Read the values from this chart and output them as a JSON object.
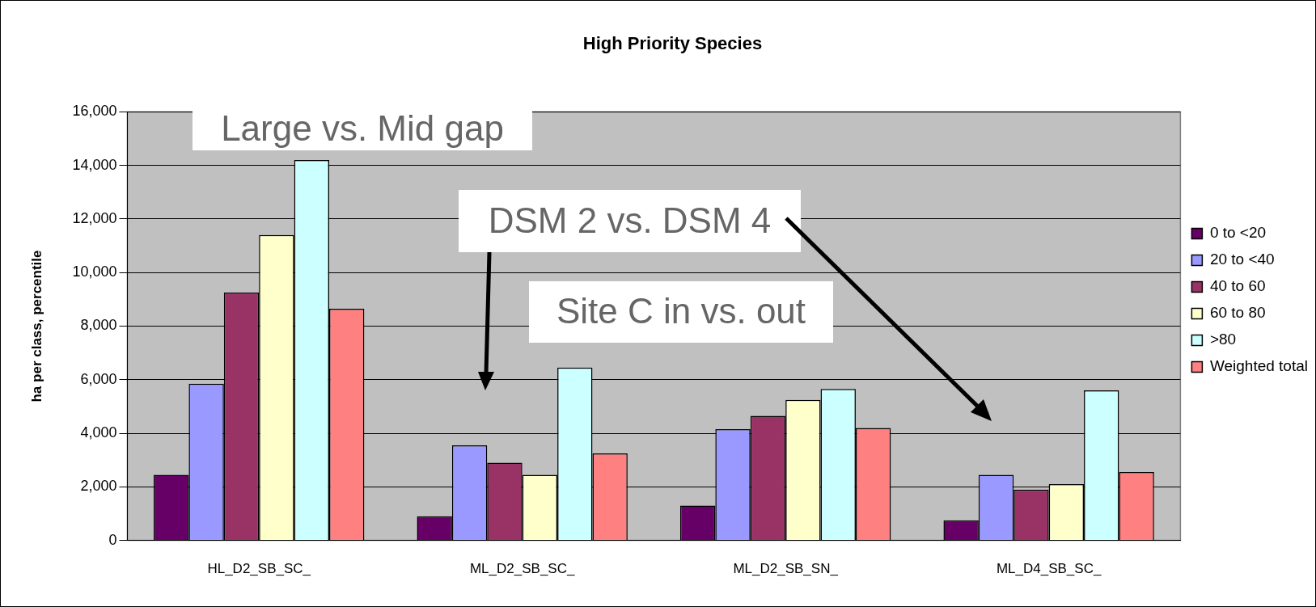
{
  "chart_data": {
    "type": "bar",
    "title": "High Priority Species",
    "ylabel": "ha per class, percentile",
    "categories": [
      "HL_D2_SB_SC_",
      "ML_D2_SB_SC_",
      "ML_D2_SB_SN_",
      "ML_D4_SB_SC_"
    ],
    "series": [
      {
        "name": "0 to <20",
        "color": "#660066",
        "values": [
          2450,
          900,
          1300,
          750
        ]
      },
      {
        "name": "20 to <40",
        "color": "#9999ff",
        "values": [
          5850,
          3550,
          4150,
          2450
        ]
      },
      {
        "name": "40 to 60",
        "color": "#993366",
        "values": [
          9250,
          2900,
          4650,
          1900
        ]
      },
      {
        "name": "60 to 80",
        "color": "#ffffcc",
        "values": [
          11400,
          2450,
          5250,
          2100
        ]
      },
      {
        "name": ">80",
        "color": "#ccffff",
        "values": [
          14200,
          6450,
          5650,
          5600
        ]
      },
      {
        "name": "Weighted total",
        "color": "#ff8080",
        "values": [
          8650,
          3250,
          4200,
          2550
        ]
      }
    ],
    "ylim": [
      0,
      16000
    ],
    "yticks": [
      {
        "value": 0,
        "label": "0"
      },
      {
        "value": 2000,
        "label": "2,000"
      },
      {
        "value": 4000,
        "label": "4,000"
      },
      {
        "value": 6000,
        "label": "6,000"
      },
      {
        "value": 8000,
        "label": "8,000"
      },
      {
        "value": 10000,
        "label": "10,000"
      },
      {
        "value": 12000,
        "label": "12,000"
      },
      {
        "value": 14000,
        "label": "14,000"
      },
      {
        "value": 16000,
        "label": "16,000"
      }
    ],
    "grid": "y",
    "legend": "right",
    "annotations": [
      "Large vs. Mid gap",
      "DSM 2 vs. DSM 4",
      "Site C in vs. out"
    ]
  }
}
